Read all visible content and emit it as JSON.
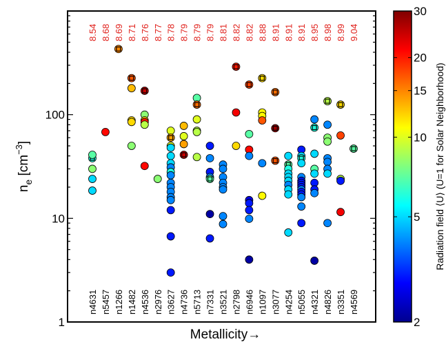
{
  "chart_data": {
    "type": "scatter",
    "xlabel": "Metallicity→",
    "ylabel_main": "n",
    "ylabel_sub": "e",
    "ylabel_unit_pre": " [cm",
    "ylabel_unit_sup": "−3",
    "ylabel_unit_post": "]",
    "y_scale": "log",
    "ylim": [
      1,
      1000
    ],
    "y_ticks": [
      {
        "value": 1,
        "label": "1"
      },
      {
        "value": 10,
        "label": "10"
      },
      {
        "value": 100,
        "label": "100"
      }
    ],
    "colorbar": {
      "label": "Radiation field ⟨U⟩ (U=1 for Solar Neighborhood)",
      "scale": "log",
      "range": [
        2,
        30
      ],
      "ticks": [
        {
          "value": 2,
          "label": "2"
        },
        {
          "value": 5,
          "label": "5"
        },
        {
          "value": 10,
          "label": "10"
        },
        {
          "value": 15,
          "label": "15"
        },
        {
          "value": 20,
          "label": "20"
        },
        {
          "value": 30,
          "label": "30"
        }
      ]
    },
    "galaxies": [
      {
        "name": "n4631",
        "metallicity": "8.54",
        "points": [
          [
            38,
            6,
            true
          ],
          [
            41,
            7,
            false
          ],
          [
            30,
            8,
            false
          ],
          [
            24,
            5,
            false
          ],
          [
            18.5,
            5,
            false
          ]
        ]
      },
      {
        "name": "n5457",
        "metallicity": "8.68",
        "points": [
          [
            68,
            21,
            false
          ]
        ]
      },
      {
        "name": "n1266",
        "metallicity": "8.69",
        "points": [
          [
            430,
            15,
            true
          ]
        ]
      },
      {
        "name": "n1482",
        "metallicity": "8.71",
        "points": [
          [
            225,
            17,
            true
          ],
          [
            180,
            13,
            false
          ],
          [
            88,
            12,
            false
          ],
          [
            85,
            12,
            false
          ],
          [
            50,
            8,
            false
          ]
        ]
      },
      {
        "name": "n4536",
        "metallicity": "8.76",
        "points": [
          [
            170,
            25,
            true
          ],
          [
            100,
            8,
            false
          ],
          [
            88,
            12,
            false
          ],
          [
            85,
            20,
            false
          ],
          [
            80,
            9,
            false
          ],
          [
            32,
            21,
            false
          ]
        ]
      },
      {
        "name": "n2976",
        "metallicity": "8.77",
        "points": [
          [
            24,
            8,
            false
          ]
        ]
      },
      {
        "name": "n3627",
        "metallicity": "8.78",
        "points": [
          [
            70,
            10,
            false
          ],
          [
            60,
            14,
            true
          ],
          [
            50,
            10,
            false
          ],
          [
            48,
            5,
            false
          ],
          [
            40,
            5,
            false
          ],
          [
            34,
            5,
            false
          ],
          [
            31,
            4,
            false
          ],
          [
            28,
            6,
            false
          ],
          [
            26,
            4,
            false
          ],
          [
            22,
            4,
            false
          ],
          [
            20,
            4,
            false
          ],
          [
            18,
            4,
            false
          ],
          [
            16,
            4,
            false
          ],
          [
            15,
            4,
            false
          ],
          [
            12,
            3,
            false
          ],
          [
            6.7,
            3,
            false
          ],
          [
            3,
            3,
            false
          ]
        ]
      },
      {
        "name": "n4736",
        "metallicity": "8.79",
        "points": [
          [
            78,
            13,
            false
          ],
          [
            62,
            10,
            false
          ],
          [
            52,
            14,
            false
          ],
          [
            41,
            25,
            true
          ]
        ]
      },
      {
        "name": "n5713",
        "metallicity": "8.79",
        "points": [
          [
            145,
            7,
            false
          ],
          [
            125,
            16,
            true
          ],
          [
            90,
            10,
            false
          ],
          [
            70,
            9,
            false
          ],
          [
            68,
            9,
            false
          ],
          [
            39,
            9,
            false
          ]
        ]
      },
      {
        "name": "n7331",
        "metallicity": "8.79",
        "points": [
          [
            50,
            3,
            false
          ],
          [
            38,
            4,
            false
          ],
          [
            28,
            3,
            false
          ],
          [
            25,
            4,
            false
          ],
          [
            24,
            7,
            true
          ],
          [
            11,
            2.2,
            false
          ],
          [
            6.4,
            3,
            false
          ]
        ]
      },
      {
        "name": "n3521",
        "metallicity": "8.81",
        "points": [
          [
            33,
            4,
            false
          ],
          [
            30,
            4,
            false
          ],
          [
            25,
            4,
            false
          ],
          [
            22,
            4,
            false
          ],
          [
            20,
            4,
            false
          ],
          [
            19,
            4,
            false
          ],
          [
            10.5,
            4,
            false
          ],
          [
            8.8,
            4,
            false
          ]
        ]
      },
      {
        "name": "n2798",
        "metallicity": "8.82",
        "points": [
          [
            290,
            20,
            true
          ],
          [
            105,
            22,
            false
          ],
          [
            50,
            12,
            false
          ]
        ]
      },
      {
        "name": "n6946",
        "metallicity": "8.82",
        "points": [
          [
            195,
            18,
            true
          ],
          [
            65,
            7,
            false
          ],
          [
            46,
            21,
            false
          ],
          [
            40,
            4,
            false
          ],
          [
            15,
            2.6,
            false
          ],
          [
            14,
            3,
            false
          ],
          [
            12,
            3,
            false
          ],
          [
            9.9,
            4,
            false
          ],
          [
            4,
            2.2,
            false
          ]
        ]
      },
      {
        "name": "n1097",
        "metallicity": "8.88",
        "points": [
          [
            225,
            12,
            true
          ],
          [
            105,
            11,
            false
          ],
          [
            97,
            11,
            false
          ],
          [
            88,
            17,
            false
          ],
          [
            34,
            4,
            false
          ],
          [
            16.5,
            11,
            false
          ]
        ]
      },
      {
        "name": "n3077",
        "metallicity": "8.91",
        "points": [
          [
            165,
            16,
            true
          ],
          [
            74,
            28,
            true
          ],
          [
            36,
            17,
            true
          ]
        ]
      },
      {
        "name": "n4254",
        "metallicity": "8.91",
        "points": [
          [
            40,
            5,
            false
          ],
          [
            33,
            7,
            true
          ],
          [
            30,
            6,
            false
          ],
          [
            27,
            5,
            false
          ],
          [
            25,
            5,
            false
          ],
          [
            23,
            5,
            false
          ],
          [
            21,
            4,
            false
          ],
          [
            19,
            5,
            false
          ],
          [
            17,
            5,
            false
          ],
          [
            7.3,
            5,
            false
          ]
        ]
      },
      {
        "name": "n5055",
        "metallicity": "8.91",
        "points": [
          [
            46,
            3,
            false
          ],
          [
            40,
            5,
            false
          ],
          [
            38,
            6,
            true
          ],
          [
            34,
            5,
            false
          ],
          [
            25,
            4,
            false
          ],
          [
            23,
            3,
            false
          ],
          [
            22,
            3,
            false
          ],
          [
            21,
            3,
            false
          ],
          [
            20,
            3,
            false
          ],
          [
            19,
            4,
            false
          ],
          [
            18,
            3,
            false
          ],
          [
            17,
            3,
            false
          ],
          [
            16,
            4,
            false
          ],
          [
            13,
            4,
            false
          ],
          [
            9,
            3,
            false
          ]
        ]
      },
      {
        "name": "n4321",
        "metallicity": "8.95",
        "points": [
          [
            90,
            4,
            false
          ],
          [
            75,
            6,
            true
          ],
          [
            42,
            5,
            false
          ],
          [
            30,
            7,
            false
          ],
          [
            27,
            5,
            false
          ],
          [
            22,
            3,
            false
          ],
          [
            19,
            3,
            false
          ],
          [
            17.5,
            4,
            false
          ],
          [
            3.9,
            2.2,
            false
          ]
        ]
      },
      {
        "name": "n4826",
        "metallicity": "8.98",
        "points": [
          [
            135,
            9,
            true
          ],
          [
            80,
            4,
            false
          ],
          [
            60,
            8,
            false
          ],
          [
            55,
            8,
            false
          ],
          [
            38,
            4,
            false
          ],
          [
            35,
            4,
            false
          ],
          [
            30,
            4,
            false
          ],
          [
            27,
            5,
            false
          ],
          [
            9,
            4,
            false
          ]
        ]
      },
      {
        "name": "n3351",
        "metallicity": "8.99",
        "points": [
          [
            125,
            12,
            true
          ],
          [
            63,
            18,
            false
          ],
          [
            24,
            9,
            false
          ],
          [
            23,
            3,
            false
          ],
          [
            11.5,
            22,
            false
          ]
        ]
      },
      {
        "name": "n4569",
        "metallicity": "9.04",
        "points": [
          [
            47,
            7,
            true
          ]
        ]
      }
    ]
  }
}
